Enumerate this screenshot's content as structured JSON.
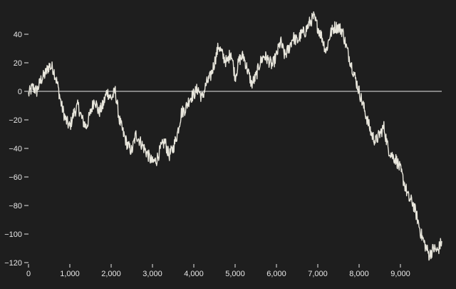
{
  "colors": {
    "background": "#1e1e1e",
    "line": "#e8e6dc",
    "axis": "#e8e8e8",
    "zero_rule": "#e8e8e8"
  },
  "chart_data": {
    "type": "line",
    "title": "",
    "xlabel": "",
    "ylabel": "",
    "xlim": [
      0,
      10000
    ],
    "ylim": [
      -120,
      55
    ],
    "x_ticks": [
      0,
      1000,
      2000,
      3000,
      4000,
      5000,
      6000,
      7000,
      8000,
      9000
    ],
    "x_tick_labels": [
      "0",
      "1,000",
      "2,000",
      "3,000",
      "4,000",
      "5,000",
      "6,000",
      "7,000",
      "8,000",
      "9,000"
    ],
    "y_ticks": [
      40,
      20,
      0,
      -20,
      -40,
      -60,
      -80,
      -100,
      -120
    ],
    "y_tick_labels": [
      "40",
      "20",
      "0",
      "−20",
      "−40",
      "−60",
      "−80",
      "−100",
      "−120"
    ],
    "zero_rule": true,
    "grid": false,
    "series": [
      {
        "x": [
          0,
          100,
          200,
          300,
          400,
          500,
          600,
          700,
          800,
          900,
          1000,
          1100,
          1200,
          1300,
          1400,
          1500,
          1600,
          1700,
          1800,
          1900,
          2000,
          2100,
          2200,
          2300,
          2400,
          2500,
          2600,
          2700,
          2800,
          2900,
          3000,
          3100,
          3200,
          3300,
          3400,
          3500,
          3600,
          3700,
          3800,
          3900,
          4000,
          4100,
          4200,
          4300,
          4400,
          4500,
          4600,
          4700,
          4800,
          4900,
          5000,
          5100,
          5200,
          5300,
          5400,
          5500,
          5600,
          5700,
          5800,
          5900,
          6000,
          6100,
          6200,
          6300,
          6400,
          6500,
          6600,
          6700,
          6800,
          6900,
          7000,
          7100,
          7200,
          7300,
          7400,
          7500,
          7600,
          7700,
          7800,
          7900,
          8000,
          8100,
          8200,
          8300,
          8400,
          8500,
          8600,
          8700,
          8800,
          8900,
          9000,
          9100,
          9200,
          9300,
          9400,
          9500,
          9600,
          9700,
          9800,
          9900,
          10000
        ],
        "values": [
          -2,
          3,
          0,
          8,
          12,
          18,
          16,
          5,
          -10,
          -20,
          -25,
          -15,
          -10,
          -20,
          -25,
          -15,
          -5,
          -15,
          -10,
          0,
          -5,
          0,
          -20,
          -30,
          -38,
          -42,
          -30,
          -35,
          -40,
          -45,
          -50,
          -48,
          -40,
          -35,
          -45,
          -40,
          -30,
          -15,
          -12,
          -5,
          -2,
          2,
          -5,
          5,
          10,
          20,
          32,
          25,
          20,
          28,
          10,
          22,
          25,
          15,
          5,
          10,
          20,
          25,
          22,
          18,
          25,
          35,
          25,
          30,
          38,
          35,
          40,
          42,
          48,
          52,
          45,
          38,
          28,
          40,
          45,
          45,
          42,
          30,
          20,
          10,
          0,
          -10,
          -20,
          -30,
          -35,
          -30,
          -25,
          -40,
          -45,
          -48,
          -55,
          -65,
          -75,
          -78,
          -88,
          -100,
          -108,
          -115,
          -110,
          -112,
          -105
        ]
      }
    ]
  }
}
